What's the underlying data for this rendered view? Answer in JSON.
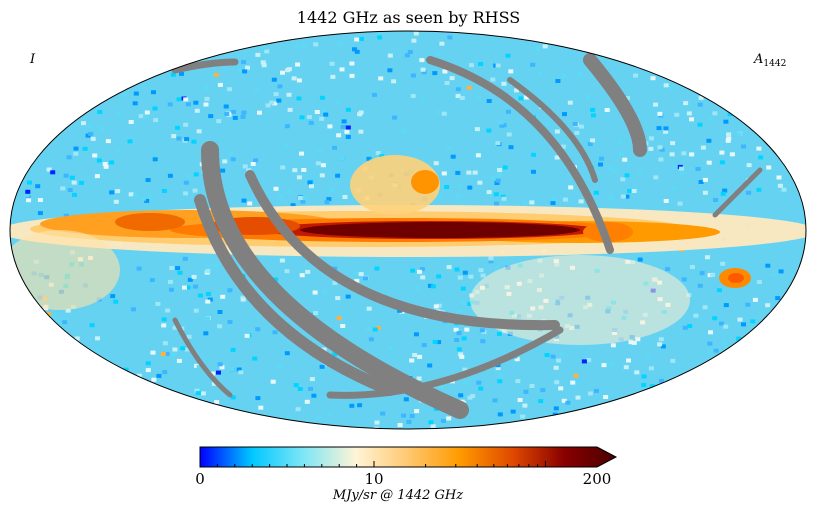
{
  "chart_data": {
    "type": "heatmap",
    "projection": "mollweide",
    "title": "1442 GHz as seen by RHSS",
    "stokes_label": "I",
    "map_label_base": "A",
    "map_label_sub": "1442",
    "colorbar": {
      "min": 0,
      "mid": 10,
      "max": 200,
      "tick_labels": [
        "0",
        "10",
        "200"
      ],
      "units_label": "MJy/sr @ 1442 GHz",
      "extend": "max",
      "colormap_stops": [
        "#0000ff",
        "#00c8ff",
        "#7fe6f5",
        "#fff4d6",
        "#ffc870",
        "#ff9a00",
        "#e04a00",
        "#8a0000",
        "#4a0000"
      ]
    },
    "masked_color": "#808080",
    "masked_regions": [
      "scan-gap arcs crossing the map (grey)"
    ],
    "features": [
      "Galactic plane emission band along the equator",
      "brightest emission toward the Galactic center"
    ]
  }
}
